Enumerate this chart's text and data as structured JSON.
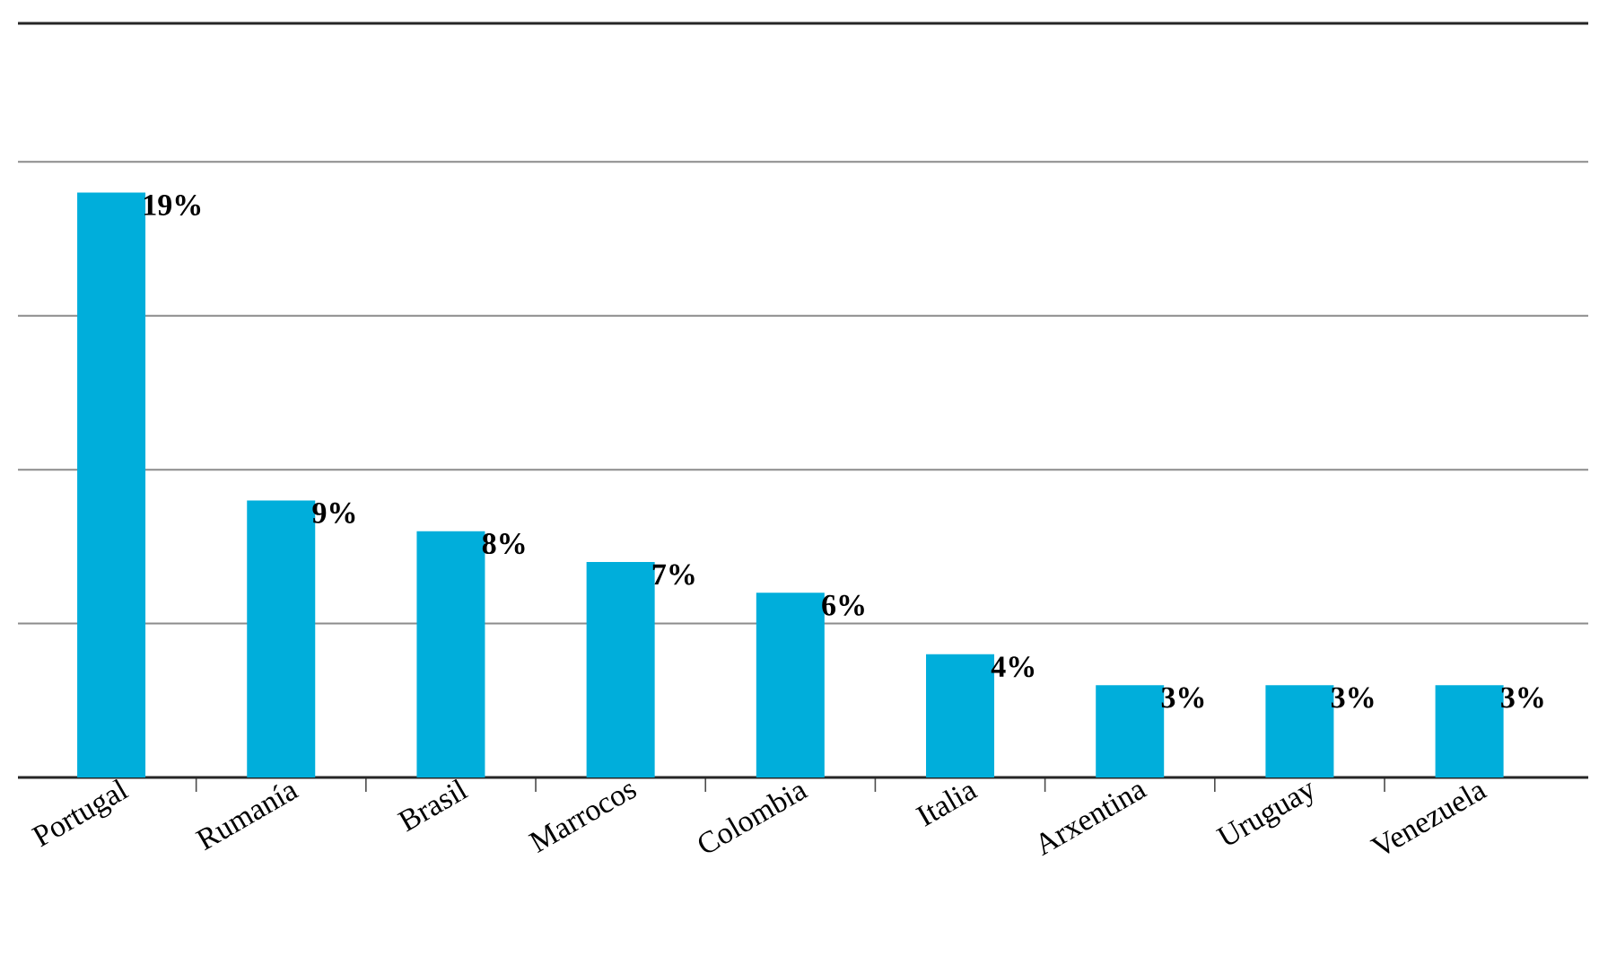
{
  "chart_data": {
    "type": "bar",
    "categories": [
      "Portugal",
      "Rumanía",
      "Brasil",
      "Marrocos",
      "Colombia",
      "Italia",
      "Arxentina",
      "Uruguay",
      "Venezuela"
    ],
    "values": [
      19,
      9,
      8,
      7,
      6,
      4,
      3,
      3,
      3
    ],
    "value_labels": [
      "19%",
      "9%",
      "8%",
      "7%",
      "6%",
      "4%",
      "3%",
      "3%",
      "3%"
    ],
    "color": "#00aedb",
    "ylim": [
      0,
      24.5
    ],
    "yticks": [
      {
        "value": 0,
        "label": null
      },
      {
        "value": 5,
        "label": null
      },
      {
        "value": 10,
        "label": null
      },
      {
        "value": 15,
        "label": null
      },
      {
        "value": 20,
        "label": null
      }
    ],
    "tick_labels": "x",
    "grid": "y"
  }
}
